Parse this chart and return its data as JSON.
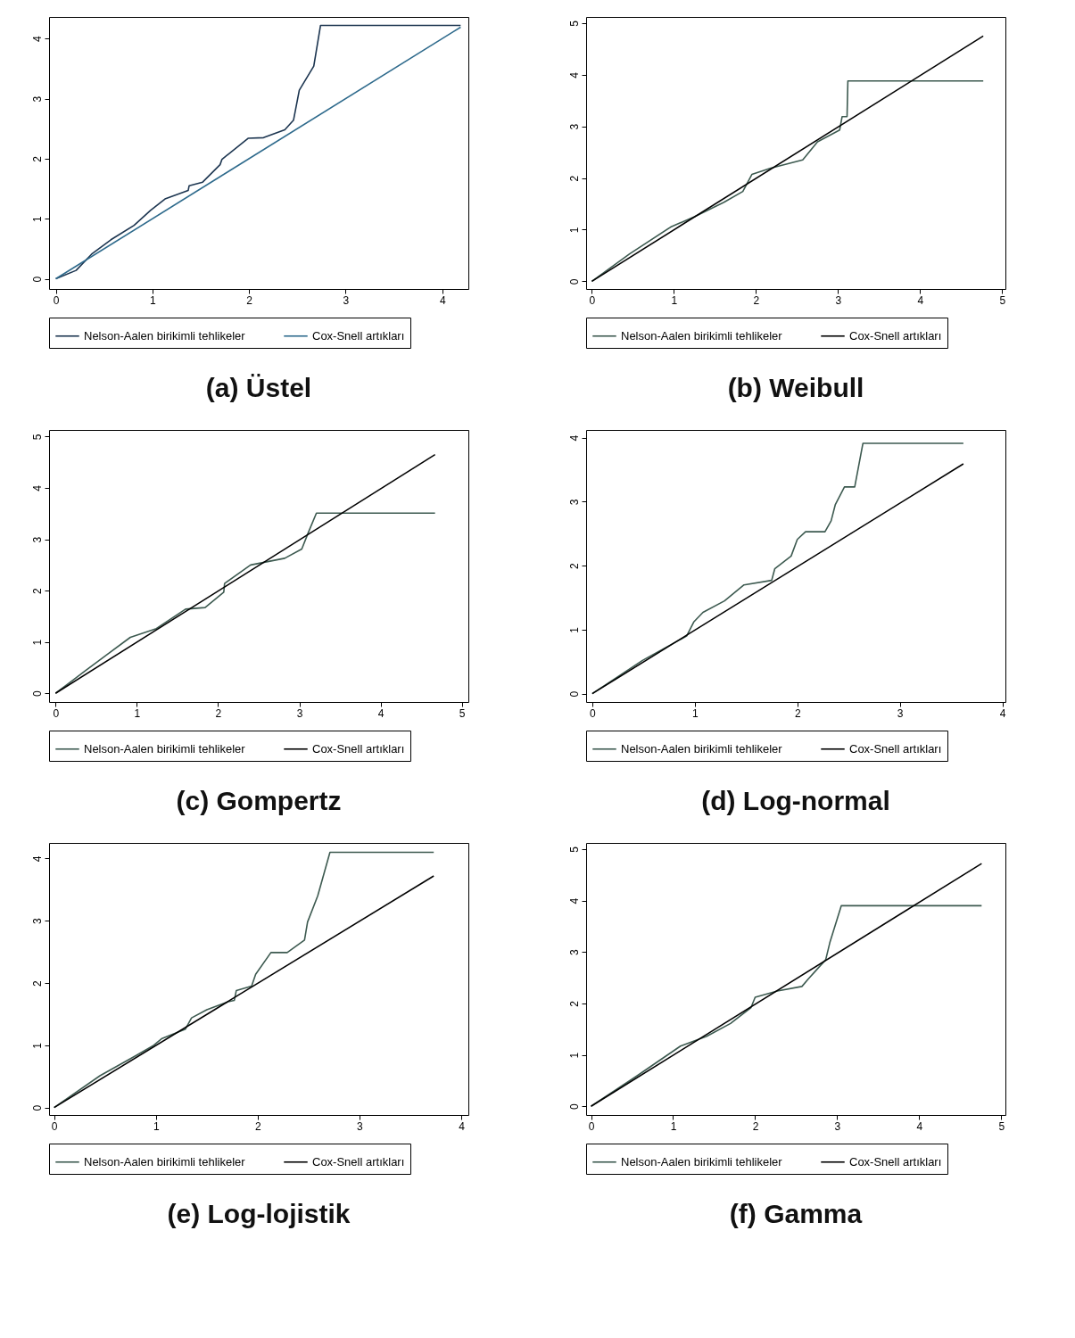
{
  "chart_data": [
    {
      "type": "line",
      "title": "(a) Üstel",
      "xlim": [
        -0.07,
        4.27
      ],
      "ylim": [
        -0.17,
        4.36
      ],
      "xticks": [
        0,
        1,
        2,
        3,
        4
      ],
      "yticks": [
        0,
        1,
        2,
        3,
        4
      ],
      "legend": "bottom",
      "series": [
        {
          "name": "Nelson-Aalen birikimli tehlikeler",
          "color": "#1c3550",
          "x": [
            0,
            0.21,
            0.37,
            0.57,
            0.81,
            0.98,
            1.13,
            1.37,
            1.38,
            1.52,
            1.7,
            1.72,
            1.99,
            2.15,
            2.37,
            2.46,
            2.52,
            2.67,
            2.74,
            4.19
          ],
          "values": [
            0,
            0.14,
            0.41,
            0.65,
            0.89,
            1.14,
            1.33,
            1.47,
            1.55,
            1.61,
            1.9,
            1.99,
            2.34,
            2.35,
            2.48,
            2.64,
            3.14,
            3.54,
            4.22,
            4.22
          ]
        },
        {
          "name": "Cox-Snell artıkları",
          "color": "#2e6a8c",
          "x": [
            0,
            4.19
          ],
          "values": [
            0,
            4.19
          ]
        }
      ]
    },
    {
      "type": "line",
      "title": "(b) Weibull",
      "xlim": [
        -0.07,
        5.04
      ],
      "ylim": [
        -0.15,
        5.12
      ],
      "xticks": [
        0,
        1,
        2,
        3,
        4,
        5
      ],
      "yticks": [
        0,
        1,
        2,
        3,
        4,
        5
      ],
      "legend": "bottom",
      "series": [
        {
          "name": "Nelson-Aalen birikimli tehlikeler",
          "color": "#3d5a50",
          "x": [
            0,
            0.46,
            0.96,
            1.25,
            1.61,
            1.84,
            1.95,
            2.18,
            2.57,
            2.75,
            3.02,
            3.05,
            3.11,
            3.12,
            4.77
          ],
          "values": [
            0,
            0.53,
            1.05,
            1.25,
            1.53,
            1.74,
            2.07,
            2.19,
            2.35,
            2.7,
            2.93,
            3.19,
            3.19,
            3.88,
            3.88
          ]
        },
        {
          "name": "Cox-Snell artıkları",
          "color": "#000000",
          "x": [
            0,
            4.77
          ],
          "values": [
            0,
            4.75
          ]
        }
      ]
    },
    {
      "type": "line",
      "title": "(c) Gompertz",
      "xlim": [
        -0.08,
        5.08
      ],
      "ylim": [
        -0.17,
        5.13
      ],
      "xticks": [
        0,
        1,
        2,
        3,
        4,
        5
      ],
      "yticks": [
        0,
        1,
        2,
        3,
        4,
        5
      ],
      "legend": "bottom",
      "series": [
        {
          "name": "Nelson-Aalen birikimli tehlikeler",
          "color": "#3d5a50",
          "x": [
            0,
            0.36,
            0.64,
            0.92,
            1.24,
            1.6,
            1.84,
            2.07,
            2.08,
            2.4,
            2.82,
            3.03,
            3.11,
            3.21,
            4.67
          ],
          "values": [
            0,
            0.43,
            0.76,
            1.09,
            1.26,
            1.64,
            1.67,
            1.97,
            2.14,
            2.5,
            2.63,
            2.81,
            3.13,
            3.51,
            3.51
          ]
        },
        {
          "name": "Cox-Snell artıkları",
          "color": "#000000",
          "x": [
            0,
            4.67
          ],
          "values": [
            0,
            4.65
          ]
        }
      ]
    },
    {
      "type": "line",
      "title": "(d) Log-normal",
      "xlim": [
        -0.06,
        4.03
      ],
      "ylim": [
        -0.13,
        4.12
      ],
      "xticks": [
        0,
        1,
        2,
        3,
        4
      ],
      "yticks": [
        0,
        1,
        2,
        3,
        4
      ],
      "legend": "bottom",
      "series": [
        {
          "name": "Nelson-Aalen birikimli tehlikeler",
          "color": "#3d5a50",
          "x": [
            0,
            0.49,
            0.92,
            0.99,
            1.08,
            1.29,
            1.48,
            1.75,
            1.78,
            1.94,
            2.0,
            2.08,
            2.27,
            2.33,
            2.37,
            2.46,
            2.56,
            2.64,
            3.62
          ],
          "values": [
            0,
            0.52,
            0.9,
            1.12,
            1.27,
            1.45,
            1.7,
            1.77,
            1.95,
            2.15,
            2.41,
            2.53,
            2.53,
            2.7,
            2.95,
            3.23,
            3.23,
            3.91,
            3.91
          ]
        },
        {
          "name": "Cox-Snell artıkları",
          "color": "#000000",
          "x": [
            0,
            3.62
          ],
          "values": [
            0,
            3.59
          ]
        }
      ]
    },
    {
      "type": "line",
      "title": "(e) Log-lojistik",
      "xlim": [
        -0.05,
        4.07
      ],
      "ylim": [
        -0.12,
        4.25
      ],
      "xticks": [
        0,
        1,
        2,
        3,
        4
      ],
      "yticks": [
        0,
        1,
        2,
        3,
        4
      ],
      "legend": "bottom",
      "series": [
        {
          "name": "Nelson-Aalen birikimli tehlikeler",
          "color": "#3d5a50",
          "x": [
            0,
            0.45,
            0.81,
            0.97,
            1.06,
            1.29,
            1.35,
            1.5,
            1.71,
            1.77,
            1.79,
            1.94,
            1.98,
            2.13,
            2.29,
            2.46,
            2.49,
            2.59,
            2.71,
            3.73
          ],
          "values": [
            0,
            0.51,
            0.84,
            0.99,
            1.11,
            1.26,
            1.44,
            1.57,
            1.7,
            1.72,
            1.88,
            1.95,
            2.14,
            2.49,
            2.49,
            2.69,
            2.98,
            3.4,
            4.1,
            4.1
          ]
        },
        {
          "name": "Cox-Snell artıkları",
          "color": "#000000",
          "x": [
            0,
            3.73
          ],
          "values": [
            0,
            3.72
          ]
        }
      ]
    },
    {
      "type": "line",
      "title": "(f) Gamma",
      "xlim": [
        -0.06,
        5.05
      ],
      "ylim": [
        -0.17,
        5.12
      ],
      "xticks": [
        0,
        1,
        2,
        3,
        4,
        5
      ],
      "yticks": [
        0,
        1,
        2,
        3,
        4,
        5
      ],
      "legend": "bottom",
      "series": [
        {
          "name": "Nelson-Aalen birikimli tehlikeler",
          "color": "#3d5a50",
          "x": [
            0,
            0.55,
            1.09,
            1.41,
            1.7,
            1.95,
            2.0,
            2.27,
            2.57,
            2.65,
            2.73,
            2.86,
            2.91,
            3.05,
            4.76
          ],
          "values": [
            0,
            0.58,
            1.17,
            1.36,
            1.61,
            1.92,
            2.12,
            2.24,
            2.33,
            2.48,
            2.62,
            2.85,
            3.18,
            3.9,
            3.9
          ]
        },
        {
          "name": "Cox-Snell artıkları",
          "color": "#000000",
          "x": [
            0,
            4.76
          ],
          "values": [
            0,
            4.72
          ]
        }
      ]
    }
  ]
}
